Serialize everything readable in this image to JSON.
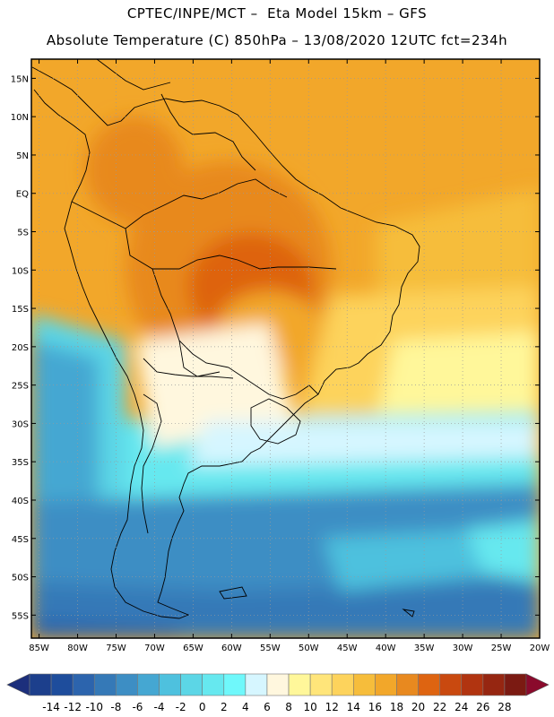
{
  "header": {
    "line1": "CPTEC/INPE/MCT –  Eta Model 15km – GFS",
    "line2": "Absolute Temperature (C) 850hPa – 13/08/2020 12UTC fct=234h"
  },
  "map": {
    "lat_ticks": [
      "15N",
      "10N",
      "5N",
      "EQ",
      "5S",
      "10S",
      "15S",
      "20S",
      "25S",
      "30S",
      "35S",
      "40S",
      "45S",
      "50S",
      "55S"
    ],
    "lat_values": [
      15,
      10,
      5,
      0,
      -5,
      -10,
      -15,
      -20,
      -25,
      -30,
      -35,
      -40,
      -45,
      -50,
      -55
    ],
    "lon_ticks": [
      "85W",
      "80W",
      "75W",
      "70W",
      "65W",
      "60W",
      "55W",
      "50W",
      "45W",
      "40W",
      "35W",
      "30W",
      "25W",
      "20W"
    ],
    "lon_values": [
      -85,
      -80,
      -75,
      -70,
      -65,
      -60,
      -55,
      -50,
      -45,
      -40,
      -35,
      -30,
      -25,
      -20
    ],
    "lat_range": [
      -58,
      17.5
    ],
    "lon_range": [
      -86,
      -20
    ]
  },
  "colorbar": {
    "labels": [
      "-14",
      "-12",
      "-10",
      "-8",
      "-6",
      "-4",
      "-2",
      "0",
      "2",
      "4",
      "6",
      "8",
      "10",
      "12",
      "14",
      "16",
      "18",
      "20",
      "22",
      "24",
      "26",
      "28"
    ],
    "colors": [
      "#1c3f8c",
      "#1e4d9c",
      "#2c64ad",
      "#3579b7",
      "#3d8ec4",
      "#45a7d2",
      "#4ec1de",
      "#5cd6e6",
      "#66e8ef",
      "#6ff8fb",
      "#d6f6ff",
      "#fff7de",
      "#fff79a",
      "#ffe57a",
      "#fdd35c",
      "#f6bd3b",
      "#f2a72a",
      "#e8891f",
      "#de6411",
      "#c9490f",
      "#b13410",
      "#962611",
      "#7b1a12"
    ],
    "under_color": "#1c2f7c",
    "over_color": "#8a0a2c"
  }
}
